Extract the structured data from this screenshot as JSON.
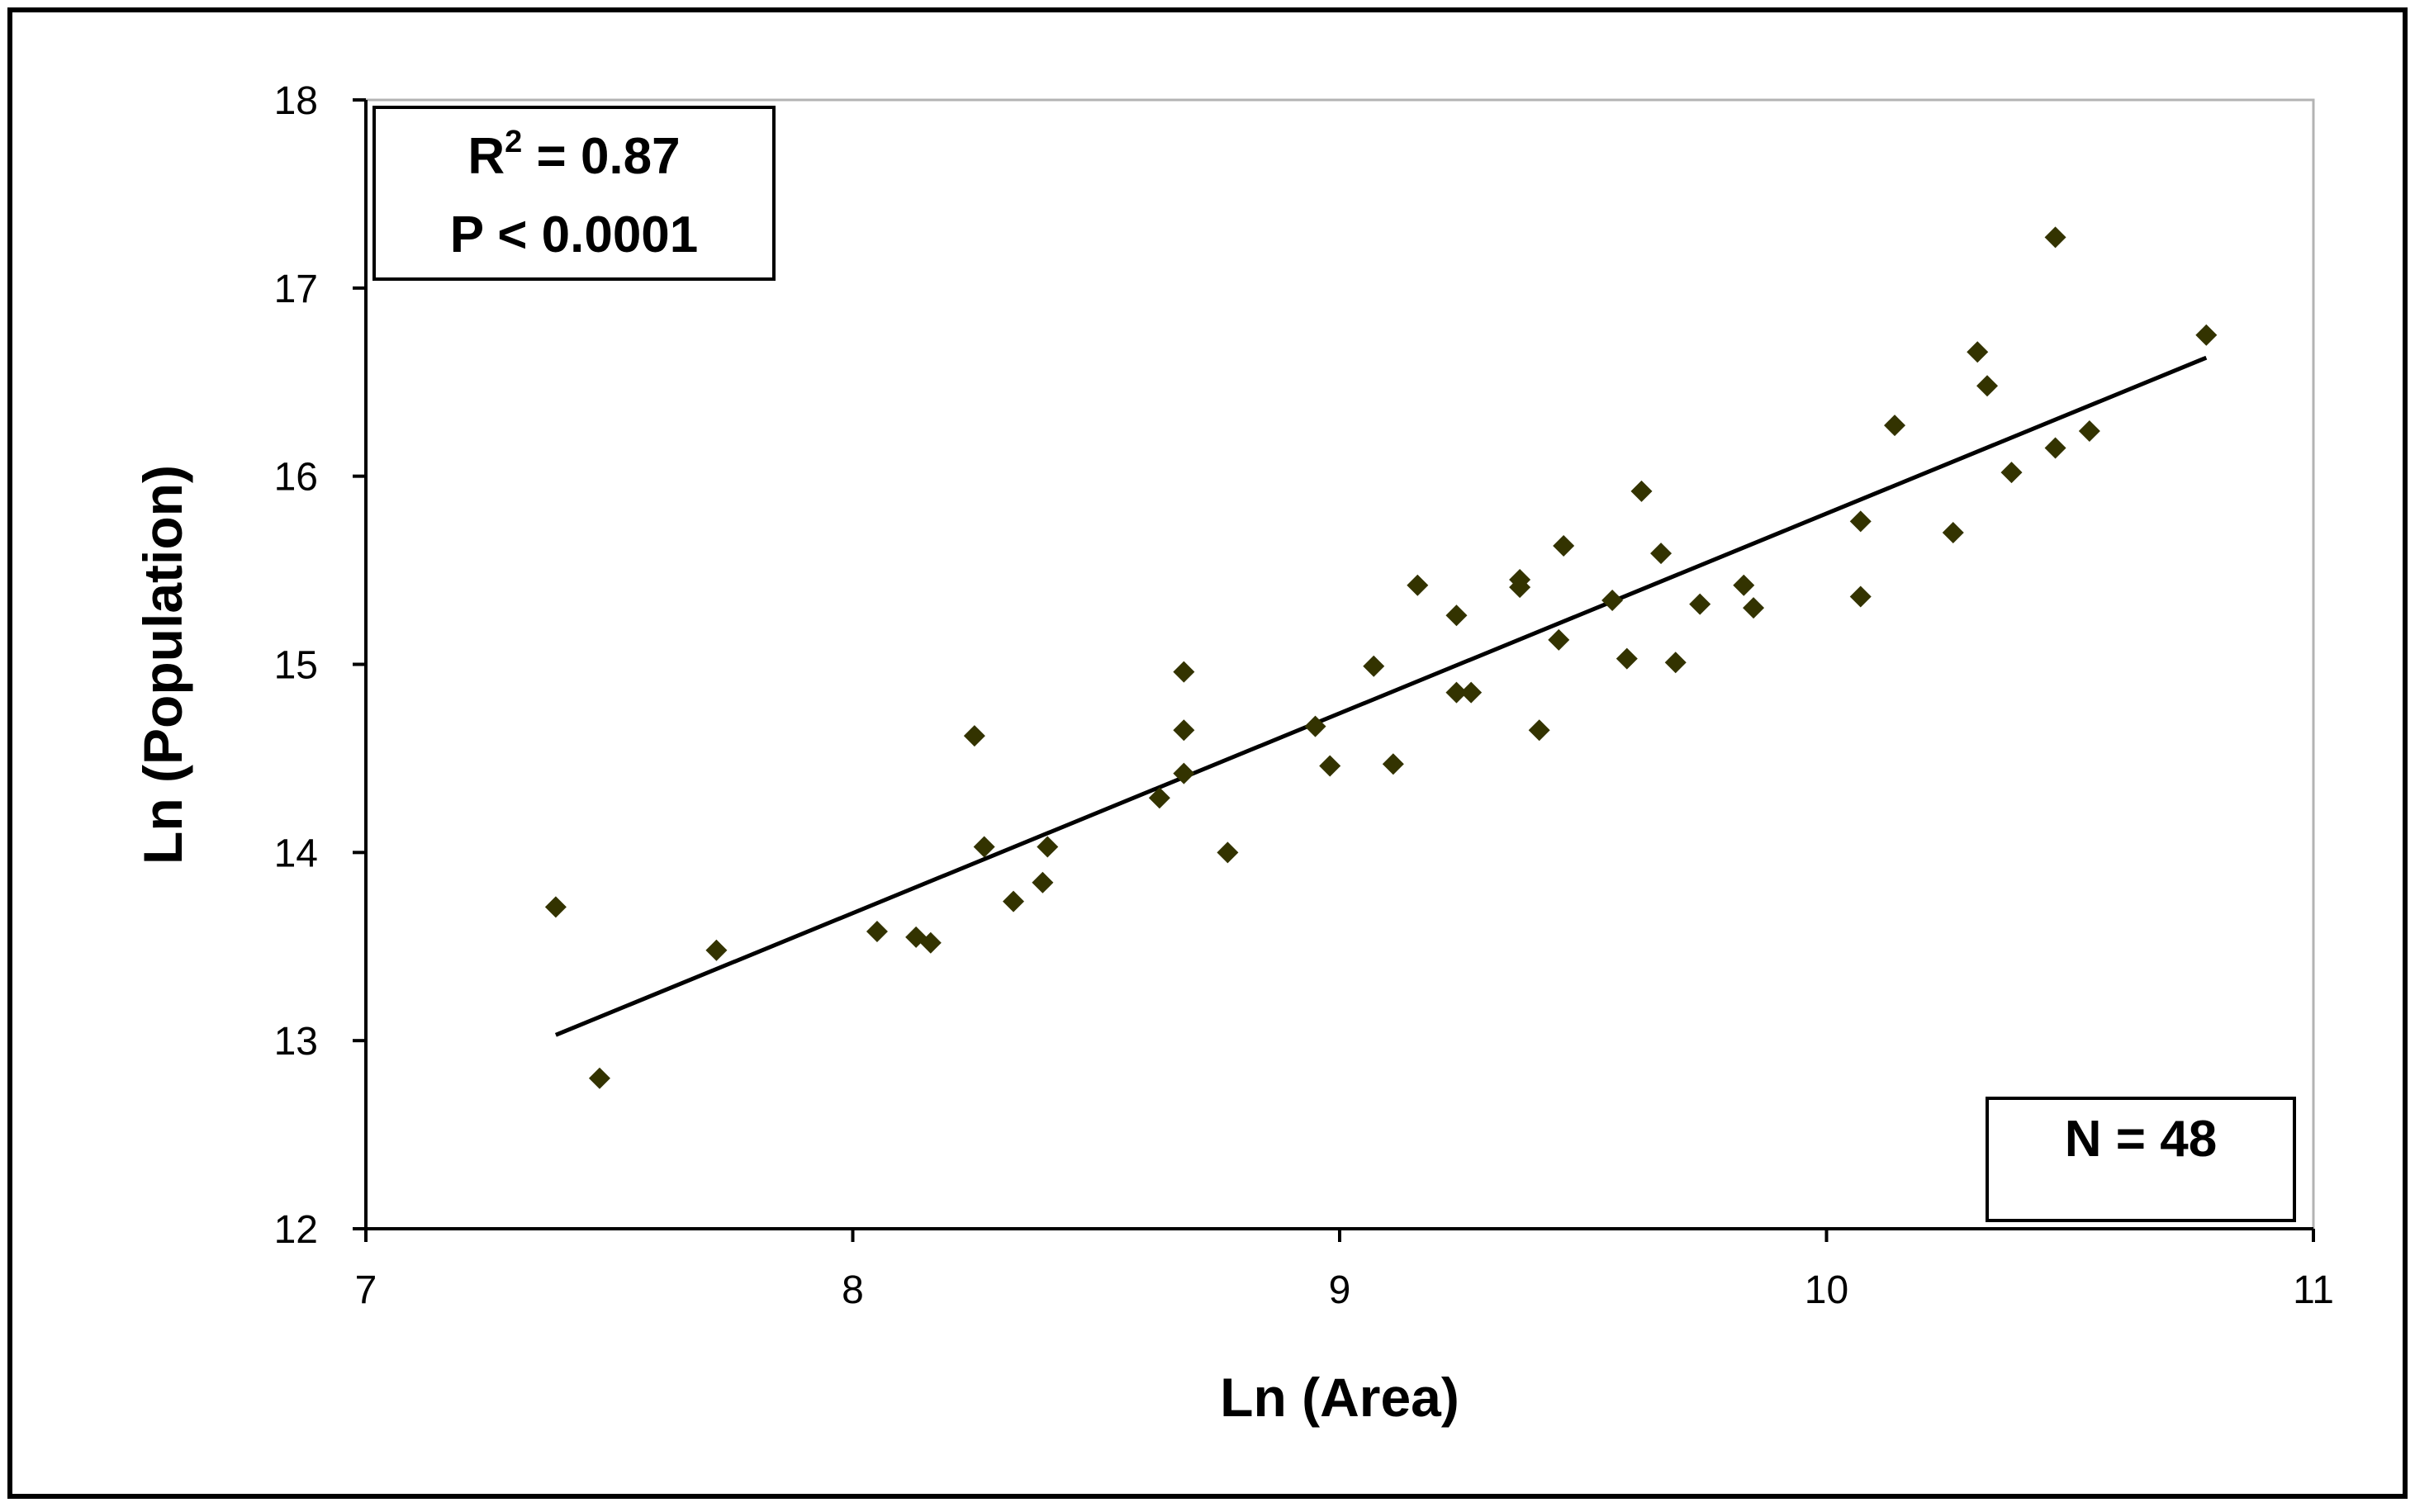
{
  "chart_data": {
    "type": "scatter",
    "title": "",
    "xlabel": "Ln (Area)",
    "ylabel": "Ln (Population)",
    "xlim": [
      7,
      11
    ],
    "ylim": [
      12,
      18
    ],
    "x_ticks": [
      "7",
      "8",
      "9",
      "10",
      "11"
    ],
    "y_ticks": [
      "12",
      "13",
      "14",
      "15",
      "16",
      "17",
      "18"
    ],
    "grid": false,
    "marker_color": "#333300",
    "line_color": "#000000",
    "annotations": {
      "r2_prefix": "R",
      "r2_sup": "2",
      "r2_suffix": " = 0.87",
      "p_value": "P < 0.0001",
      "n": "N = 48"
    },
    "trendline": {
      "x": [
        7.39,
        10.78
      ],
      "y": [
        13.03,
        16.63
      ]
    },
    "series": [
      {
        "points": [
          [
            7.39,
            13.71
          ],
          [
            7.48,
            12.8
          ],
          [
            7.72,
            13.48
          ],
          [
            8.05,
            13.58
          ],
          [
            8.13,
            13.55
          ],
          [
            8.16,
            13.52
          ],
          [
            8.25,
            14.62
          ],
          [
            8.27,
            14.03
          ],
          [
            8.33,
            13.74
          ],
          [
            8.39,
            13.84
          ],
          [
            8.4,
            14.03
          ],
          [
            8.63,
            14.29
          ],
          [
            8.68,
            14.96
          ],
          [
            8.68,
            14.65
          ],
          [
            8.68,
            14.42
          ],
          [
            8.77,
            14.0
          ],
          [
            8.95,
            14.67
          ],
          [
            8.98,
            14.46
          ],
          [
            9.07,
            14.99
          ],
          [
            9.11,
            14.47
          ],
          [
            9.16,
            15.42
          ],
          [
            9.24,
            15.26
          ],
          [
            9.24,
            14.85
          ],
          [
            9.27,
            14.85
          ],
          [
            9.37,
            15.45
          ],
          [
            9.37,
            15.41
          ],
          [
            9.41,
            14.65
          ],
          [
            9.45,
            15.13
          ],
          [
            9.46,
            15.63
          ],
          [
            9.56,
            15.34
          ],
          [
            9.59,
            15.03
          ],
          [
            9.62,
            15.92
          ],
          [
            9.66,
            15.59
          ],
          [
            9.69,
            15.01
          ],
          [
            9.74,
            15.32
          ],
          [
            9.83,
            15.42
          ],
          [
            9.85,
            15.3
          ],
          [
            10.07,
            15.76
          ],
          [
            10.07,
            15.36
          ],
          [
            10.14,
            16.27
          ],
          [
            10.26,
            15.7
          ],
          [
            10.31,
            16.66
          ],
          [
            10.33,
            16.48
          ],
          [
            10.38,
            16.02
          ],
          [
            10.47,
            17.27
          ],
          [
            10.47,
            16.15
          ],
          [
            10.54,
            16.24
          ],
          [
            10.78,
            16.75
          ]
        ]
      }
    ]
  }
}
